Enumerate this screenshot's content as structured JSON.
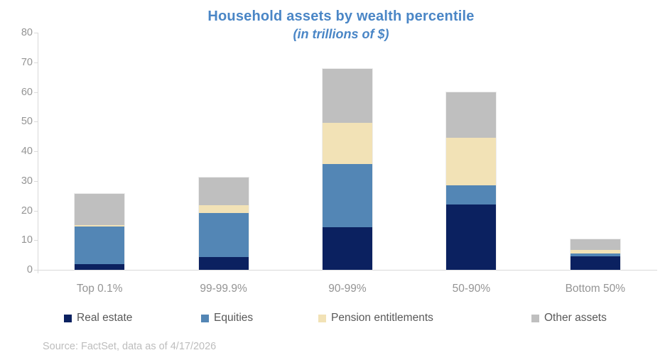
{
  "chart_data": {
    "type": "bar",
    "stacked": true,
    "title": "Household assets by wealth percentile",
    "subtitle": "(in trillions of $)",
    "categories": [
      "Top 0.1%",
      "99-99.9%",
      "90-99%",
      "50-90%",
      "Bottom 50%"
    ],
    "series": [
      {
        "name": "Real estate",
        "color": "#0B2160",
        "values": [
          1.8,
          4.2,
          14.3,
          22.0,
          4.5
        ]
      },
      {
        "name": "Equities",
        "color": "#5386B5",
        "values": [
          12.9,
          14.9,
          21.4,
          6.5,
          1.0
        ]
      },
      {
        "name": "Pension entitlements",
        "color": "#F2E2B6",
        "values": [
          0.5,
          2.7,
          13.9,
          16.1,
          1.3
        ]
      },
      {
        "name": "Other assets",
        "color": "#BFBFBF",
        "values": [
          10.5,
          9.3,
          18.1,
          15.4,
          3.5
        ]
      }
    ],
    "totals": [
      25.7,
      31.1,
      67.7,
      60.0,
      10.3
    ],
    "ylim": [
      0,
      80
    ],
    "yticks": [
      0,
      10,
      20,
      30,
      40,
      50,
      60,
      70,
      80
    ],
    "grid": false,
    "legend_position": "bottom"
  },
  "colors": {
    "title_text": "#4A86C6",
    "axis_line": "#D9D9D9",
    "axis_label_text": "#949494",
    "legend_text": "#595959",
    "source_text": "#BDBDBD"
  },
  "source": {
    "text": "Source: FactSet, data as of 4/17/2026"
  }
}
